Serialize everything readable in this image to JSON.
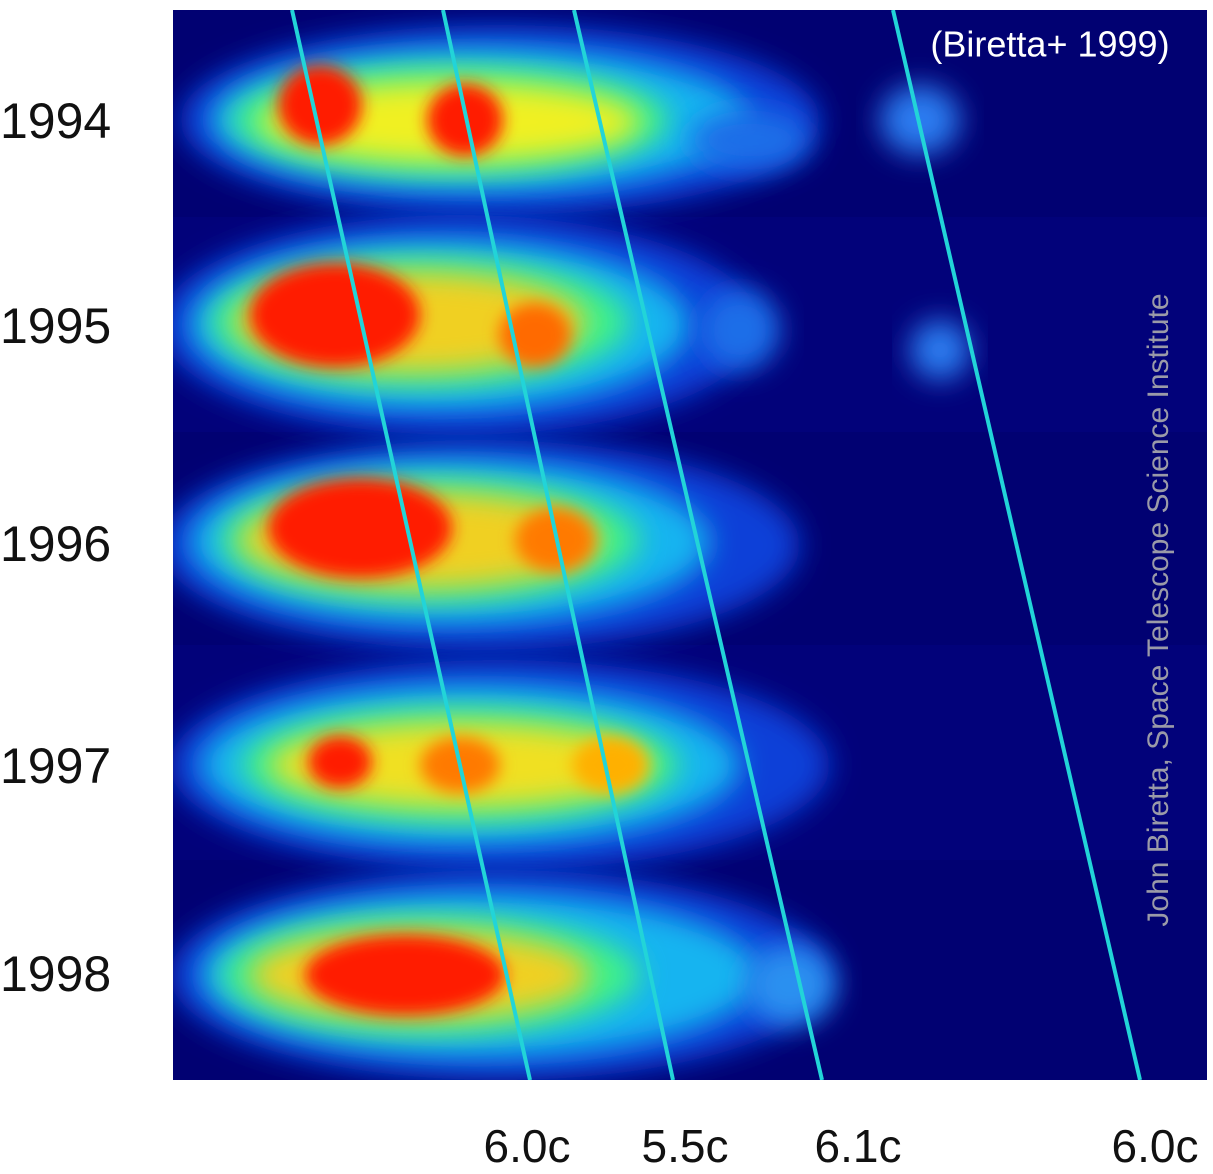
{
  "citation": "(Biretta+ 1999)",
  "credit": "John Biretta, Space Telescope Science Institute",
  "years": [
    "1994",
    "1995",
    "1996",
    "1997",
    "1998"
  ],
  "speeds": [
    "6.0c",
    "5.5c",
    "6.1c",
    "6.0c"
  ]
}
